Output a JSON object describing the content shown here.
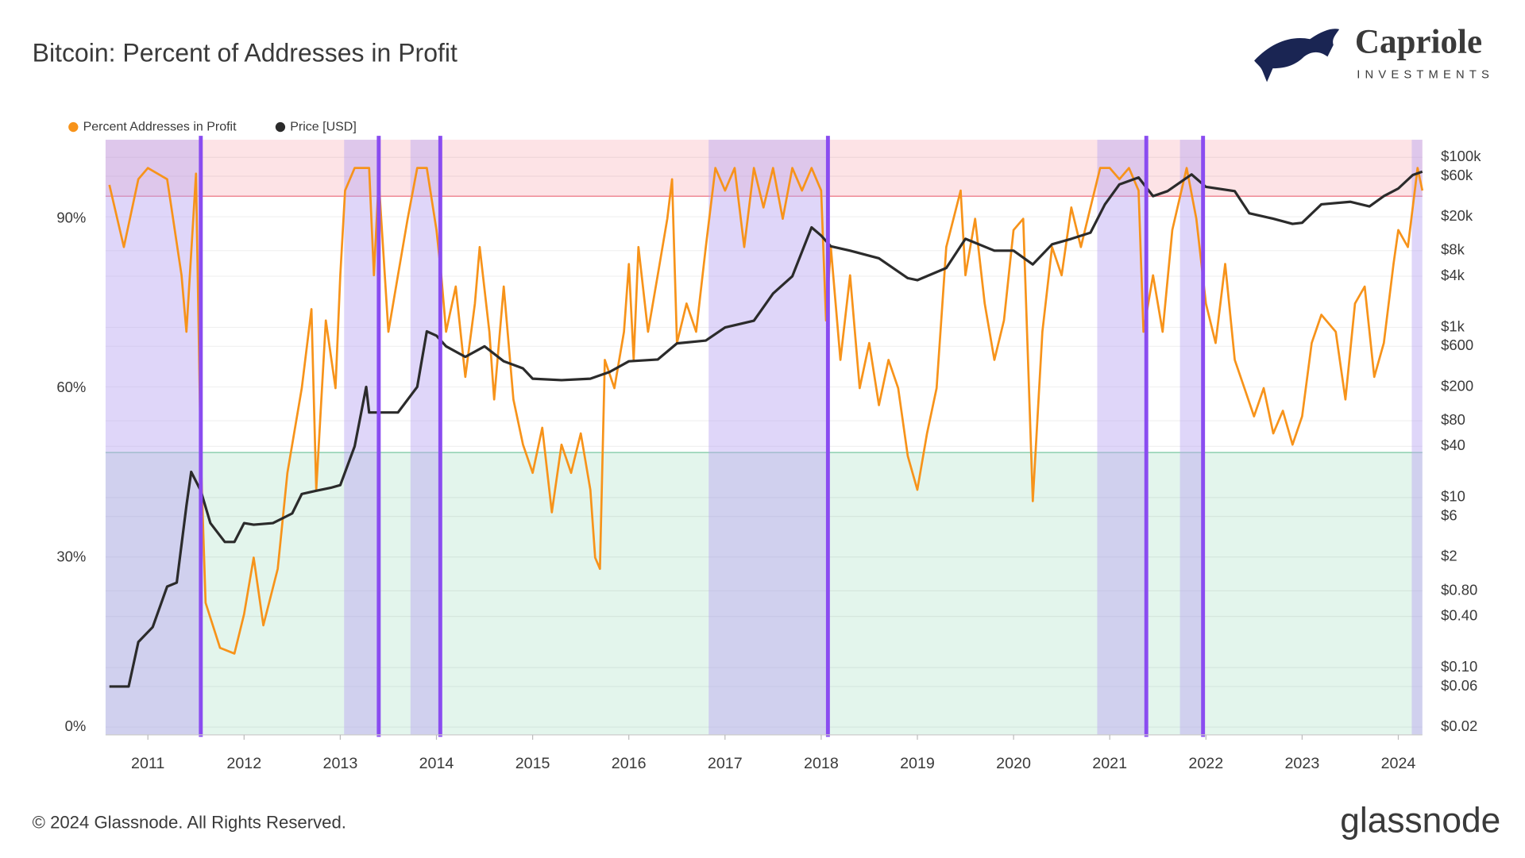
{
  "chart_data": {
    "type": "line",
    "title": "Bitcoin: Percent of Addresses in Profit",
    "xlim": [
      2010.56,
      2024.25
    ],
    "xticks": [
      2011,
      2012,
      2013,
      2014,
      2015,
      2016,
      2017,
      2018,
      2019,
      2020,
      2021,
      2022,
      2023,
      2024
    ],
    "ylim": [
      -1.4,
      104
    ],
    "yticks": [
      {
        "value": 0,
        "label": "0%"
      },
      {
        "value": 30,
        "label": "30%"
      },
      {
        "value": 60,
        "label": "60%"
      },
      {
        "value": 90,
        "label": "90%"
      }
    ],
    "y2lim": [
      0.0162,
      161000
    ],
    "y2log": true,
    "y2ticks": [
      {
        "value": 0.02,
        "label": "$0.02"
      },
      {
        "value": 0.06,
        "label": "$0.06"
      },
      {
        "value": 0.1,
        "label": "$0.10"
      },
      {
        "value": 0.4,
        "label": "$0.40"
      },
      {
        "value": 0.8,
        "label": "$0.80"
      },
      {
        "value": 2,
        "label": "$2"
      },
      {
        "value": 6,
        "label": "$6"
      },
      {
        "value": 10,
        "label": "$10"
      },
      {
        "value": 40,
        "label": "$40"
      },
      {
        "value": 80,
        "label": "$80"
      },
      {
        "value": 200,
        "label": "$200"
      },
      {
        "value": 600,
        "label": "$600"
      },
      {
        "value": 1000,
        "label": "$1k"
      },
      {
        "value": 4000,
        "label": "$4k"
      },
      {
        "value": 8000,
        "label": "$8k"
      },
      {
        "value": 20000,
        "label": "$20k"
      },
      {
        "value": 60000,
        "label": "$60k"
      },
      {
        "value": 100000,
        "label": "$100k"
      }
    ],
    "grid": true,
    "legend": "top-left",
    "zones": [
      {
        "from": 94,
        "to": 104,
        "color": "#fde3e6",
        "line": "#f08a95"
      },
      {
        "from": -1.4,
        "to": 48.6,
        "color": "#e3f5ec",
        "line": "#8ccfae"
      }
    ],
    "highlight_periods": [
      [
        2010.56,
        2011.55
      ],
      [
        2013.04,
        2013.4
      ],
      [
        2013.73,
        2014.04
      ],
      [
        2016.83,
        2018.07
      ],
      [
        2020.87,
        2021.38
      ],
      [
        2021.73,
        2021.97
      ],
      [
        2024.14,
        2024.25
      ]
    ],
    "highlight_color": "#b9a5f2",
    "cycle_lines": [
      2011.55,
      2013.4,
      2014.04,
      2018.07,
      2021.38,
      2021.97
    ],
    "cycle_line_color": "#8a4cf0",
    "series": [
      {
        "name": "Percent Addresses in Profit",
        "color": "#f7931a",
        "x": [
          2010.6,
          2010.75,
          2010.9,
          2011.0,
          2011.2,
          2011.35,
          2011.4,
          2011.5,
          2011.55,
          2011.6,
          2011.75,
          2011.9,
          2012.0,
          2012.1,
          2012.2,
          2012.35,
          2012.45,
          2012.6,
          2012.7,
          2012.75,
          2012.85,
          2012.95,
          2013.0,
          2013.05,
          2013.15,
          2013.3,
          2013.35,
          2013.4,
          2013.5,
          2013.6,
          2013.7,
          2013.8,
          2013.9,
          2014.0,
          2014.05,
          2014.1,
          2014.2,
          2014.3,
          2014.4,
          2014.45,
          2014.55,
          2014.6,
          2014.7,
          2014.8,
          2014.9,
          2015.0,
          2015.1,
          2015.2,
          2015.3,
          2015.4,
          2015.5,
          2015.6,
          2015.65,
          2015.7,
          2015.75,
          2015.85,
          2015.95,
          2016.0,
          2016.05,
          2016.1,
          2016.2,
          2016.3,
          2016.4,
          2016.45,
          2016.5,
          2016.6,
          2016.7,
          2016.8,
          2016.9,
          2017.0,
          2017.1,
          2017.2,
          2017.3,
          2017.4,
          2017.5,
          2017.6,
          2017.7,
          2017.8,
          2017.9,
          2018.0,
          2018.05,
          2018.1,
          2018.2,
          2018.3,
          2018.4,
          2018.5,
          2018.6,
          2018.7,
          2018.8,
          2018.9,
          2019.0,
          2019.1,
          2019.2,
          2019.3,
          2019.45,
          2019.5,
          2019.6,
          2019.7,
          2019.8,
          2019.9,
          2020.0,
          2020.1,
          2020.2,
          2020.3,
          2020.4,
          2020.5,
          2020.6,
          2020.7,
          2020.8,
          2020.9,
          2021.0,
          2021.1,
          2021.2,
          2021.3,
          2021.35,
          2021.45,
          2021.55,
          2021.65,
          2021.8,
          2021.9,
          2022.0,
          2022.1,
          2022.2,
          2022.3,
          2022.4,
          2022.5,
          2022.6,
          2022.7,
          2022.8,
          2022.9,
          2023.0,
          2023.1,
          2023.2,
          2023.35,
          2023.45,
          2023.55,
          2023.65,
          2023.75,
          2023.85,
          2023.95,
          2024.0,
          2024.1,
          2024.2,
          2024.25
        ],
        "values": [
          96,
          85,
          97,
          99,
          97,
          80,
          70,
          98,
          48,
          22,
          14,
          13,
          20,
          30,
          18,
          28,
          45,
          60,
          74,
          42,
          72,
          60,
          80,
          95,
          99,
          99,
          80,
          97,
          70,
          80,
          90,
          99,
          99,
          88,
          80,
          70,
          78,
          62,
          75,
          85,
          70,
          58,
          78,
          58,
          50,
          45,
          53,
          38,
          50,
          45,
          52,
          42,
          30,
          28,
          65,
          60,
          70,
          82,
          65,
          85,
          70,
          80,
          90,
          97,
          68,
          75,
          70,
          85,
          99,
          95,
          99,
          85,
          99,
          92,
          99,
          90,
          99,
          95,
          99,
          95,
          72,
          85,
          65,
          80,
          60,
          68,
          57,
          65,
          60,
          48,
          42,
          52,
          60,
          85,
          95,
          80,
          90,
          75,
          65,
          72,
          88,
          90,
          40,
          70,
          85,
          80,
          92,
          85,
          92,
          99,
          99,
          97,
          99,
          95,
          70,
          80,
          70,
          88,
          99,
          90,
          75,
          68,
          82,
          65,
          60,
          55,
          60,
          52,
          56,
          50,
          55,
          68,
          73,
          70,
          58,
          75,
          78,
          62,
          68,
          82,
          88,
          85,
          99,
          95
        ]
      },
      {
        "name": "Price [USD]",
        "color": "#2b2b2b",
        "axis": "y2",
        "x": [
          2010.6,
          2010.8,
          2010.9,
          2011.05,
          2011.2,
          2011.3,
          2011.4,
          2011.45,
          2011.55,
          2011.65,
          2011.8,
          2011.9,
          2012.0,
          2012.1,
          2012.3,
          2012.5,
          2012.6,
          2012.75,
          2012.9,
          2013.0,
          2013.15,
          2013.27,
          2013.3,
          2013.45,
          2013.6,
          2013.8,
          2013.9,
          2014.0,
          2014.1,
          2014.3,
          2014.5,
          2014.7,
          2014.9,
          2015.0,
          2015.3,
          2015.6,
          2015.8,
          2016.0,
          2016.3,
          2016.5,
          2016.8,
          2017.0,
          2017.3,
          2017.5,
          2017.7,
          2017.9,
          2018.0,
          2018.1,
          2018.3,
          2018.6,
          2018.9,
          2019.0,
          2019.3,
          2019.5,
          2019.8,
          2020.0,
          2020.2,
          2020.4,
          2020.6,
          2020.8,
          2020.95,
          2021.1,
          2021.3,
          2021.45,
          2021.6,
          2021.85,
          2022.0,
          2022.3,
          2022.45,
          2022.7,
          2022.9,
          2023.0,
          2023.2,
          2023.5,
          2023.7,
          2023.85,
          2024.0,
          2024.15,
          2024.25
        ],
        "values": [
          0.06,
          0.06,
          0.2,
          0.3,
          0.9,
          1,
          8,
          20,
          12,
          5,
          3,
          3,
          5,
          4.8,
          5,
          6.5,
          11,
          12,
          13,
          14,
          40,
          200,
          100,
          100,
          100,
          200,
          900,
          800,
          600,
          450,
          600,
          400,
          330,
          250,
          240,
          250,
          300,
          400,
          420,
          650,
          700,
          1000,
          1200,
          2500,
          4000,
          15000,
          12000,
          9000,
          8000,
          6500,
          3800,
          3600,
          5000,
          11000,
          8000,
          8000,
          5500,
          9500,
          11000,
          13000,
          28000,
          48000,
          58000,
          35000,
          40000,
          63000,
          45000,
          40000,
          22000,
          19000,
          16500,
          17000,
          28000,
          30000,
          26500,
          35000,
          43000,
          62000,
          68000
        ]
      }
    ]
  },
  "branding": {
    "company": "Capriole",
    "tagline": "INVESTMENTS",
    "copyright": "© 2024 Glassnode. All Rights Reserved.",
    "source": "glassnode"
  }
}
